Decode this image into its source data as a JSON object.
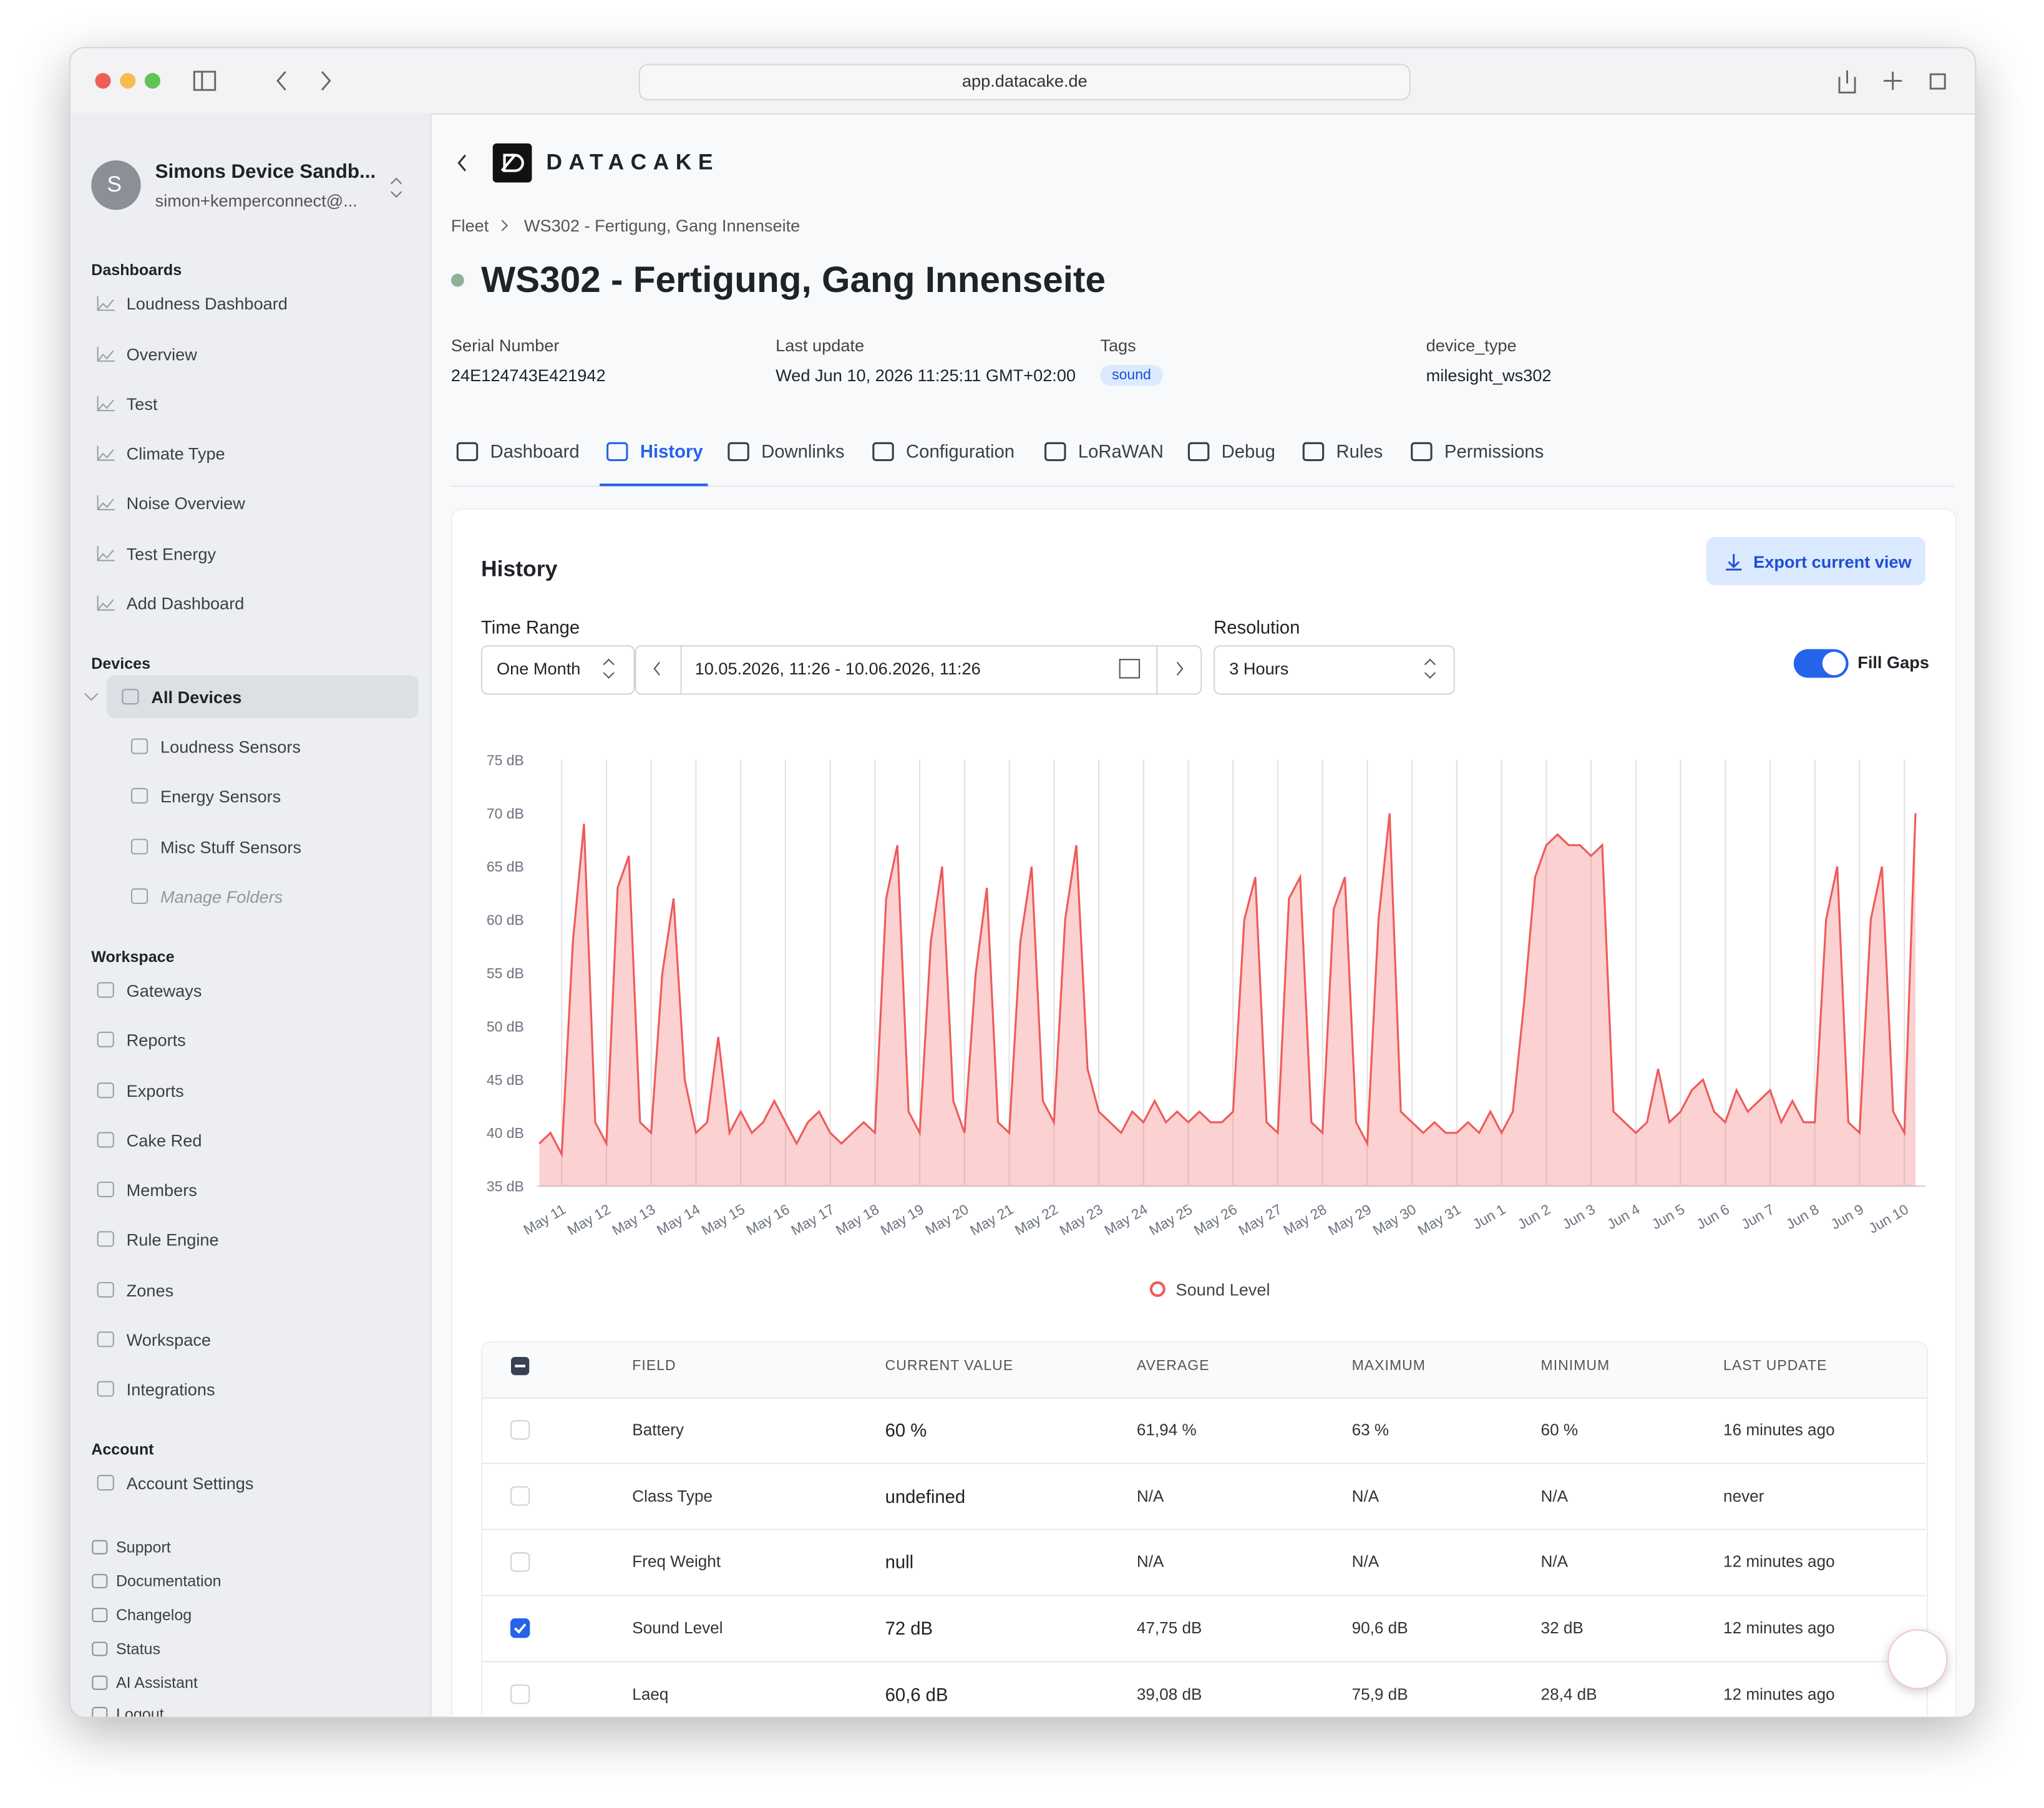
{
  "browser": {
    "url": "app.datacake.de"
  },
  "sidebar": {
    "avatar": "S",
    "account_name": "Simons Device Sandb...",
    "account_email": "simon+kemperconnect@...",
    "sections": [
      {
        "title": "Dashboards",
        "items": [
          "Loudness Dashboard",
          "Overview",
          "Test",
          "Climate Type",
          "Noise Overview",
          "Test Energy",
          "Add Dashboard"
        ]
      },
      {
        "title": "Devices",
        "items": [
          "All Devices",
          "Loudness Sensors",
          "Energy Sensors",
          "Misc Stuff Sensors",
          "Manage Folders"
        ]
      },
      {
        "title": "Workspace",
        "items": [
          "Gateways",
          "Reports",
          "Exports",
          "Cake Red",
          "Members",
          "Rule Engine",
          "Zones",
          "Workspace",
          "Integrations"
        ]
      },
      {
        "title": "Account",
        "items": [
          "Account Settings"
        ]
      }
    ],
    "footer_links": [
      "Support",
      "Documentation",
      "Changelog",
      "Status",
      "AI Assistant",
      "Logout"
    ]
  },
  "header": {
    "logo": "DATACAKE",
    "breadcrumb": [
      "Fleet",
      "WS302 - Fertigung, Gang Innenseite"
    ],
    "title": "WS302 - Fertigung, Gang Innenseite",
    "meta": [
      {
        "label": "Serial Number",
        "value": "24E124743E421942"
      },
      {
        "label": "Last update",
        "value": "Wed Jun 10, 2026 11:25:11 GMT+02:00"
      },
      {
        "label": "Tags",
        "value": "sound"
      },
      {
        "label": "device_type",
        "value": "milesight_ws302"
      }
    ],
    "tabs": [
      "Dashboard",
      "History",
      "Downlinks",
      "Configuration",
      "LoRaWAN",
      "Debug",
      "Rules",
      "Permissions"
    ],
    "active_tab": 1
  },
  "history": {
    "title": "History",
    "export_button": "Export current view",
    "time_range_label": "Time Range",
    "time_range": "One Month",
    "date_range": "10.05.2026, 11:26 - 10.06.2026, 11:26",
    "resolution_label": "Resolution",
    "resolution": "3 Hours",
    "fill_gaps_label": "Fill Gaps",
    "fill_gaps": true
  },
  "chart_data": {
    "type": "line",
    "area": true,
    "grid": "vertical",
    "x": [
      0.5,
      0.75,
      1,
      1.25,
      1.5,
      1.75,
      2,
      2.25,
      2.5,
      2.75,
      3,
      3.25,
      3.5,
      3.75,
      4,
      4.25,
      4.5,
      4.75,
      5,
      5.25,
      5.5,
      5.75,
      6,
      6.25,
      6.5,
      6.75,
      7,
      7.25,
      7.5,
      7.75,
      8,
      8.25,
      8.5,
      8.75,
      9,
      9.25,
      9.5,
      9.75,
      10,
      10.25,
      10.5,
      10.75,
      11,
      11.25,
      11.5,
      11.75,
      12,
      12.25,
      12.5,
      12.75,
      13,
      13.25,
      13.5,
      13.75,
      14,
      14.25,
      14.5,
      14.75,
      15,
      15.25,
      15.5,
      15.75,
      16,
      16.25,
      16.5,
      16.75,
      17,
      17.25,
      17.5,
      17.75,
      18,
      18.25,
      18.5,
      18.75,
      19,
      19.25,
      19.5,
      19.75,
      20,
      20.25,
      20.5,
      20.75,
      21,
      21.25,
      21.5,
      21.75,
      22,
      22.25,
      22.5,
      22.75,
      23,
      23.25,
      23.5,
      23.75,
      24,
      24.25,
      24.5,
      24.75,
      25,
      25.25,
      25.5,
      25.75,
      26,
      26.25,
      26.5,
      26.75,
      27,
      27.25,
      27.5,
      27.75,
      28,
      28.25,
      28.5,
      28.75,
      29,
      29.25,
      29.5,
      29.75,
      30,
      30.25,
      30.5,
      30.75,
      31,
      31.25
    ],
    "series": [
      {
        "name": "Sound Level",
        "color": "#ef5a5a",
        "values": [
          39,
          40,
          38,
          58,
          69,
          41,
          39,
          63,
          66,
          41,
          40,
          55,
          62,
          45,
          40,
          41,
          49,
          40,
          42,
          40,
          41,
          43,
          41,
          39,
          41,
          42,
          40,
          39,
          40,
          41,
          40,
          62,
          67,
          42,
          40,
          58,
          65,
          43,
          40,
          55,
          63,
          41,
          40,
          58,
          65,
          43,
          41,
          60,
          67,
          46,
          42,
          41,
          40,
          42,
          41,
          43,
          41,
          42,
          41,
          42,
          41,
          41,
          42,
          60,
          64,
          41,
          40,
          62,
          64,
          41,
          40,
          61,
          64,
          41,
          39,
          60,
          70,
          42,
          41,
          40,
          41,
          40,
          40,
          41,
          40,
          42,
          40,
          42,
          52,
          64,
          67,
          68,
          67,
          67,
          66,
          67,
          42,
          41,
          40,
          41,
          46,
          41,
          42,
          44,
          45,
          42,
          41,
          44,
          42,
          43,
          44,
          41,
          43,
          41,
          41,
          60,
          65,
          41,
          40,
          60,
          65,
          42,
          40,
          70
        ]
      }
    ],
    "xlim": [
      0.45,
      31.47
    ],
    "xticks": [
      {
        "value": 1,
        "label": "May 11"
      },
      {
        "value": 2,
        "label": "May 12"
      },
      {
        "value": 3,
        "label": "May 13"
      },
      {
        "value": 4,
        "label": "May 14"
      },
      {
        "value": 5,
        "label": "May 15"
      },
      {
        "value": 6,
        "label": "May 16"
      },
      {
        "value": 7,
        "label": "May 17"
      },
      {
        "value": 8,
        "label": "May 18"
      },
      {
        "value": 9,
        "label": "May 19"
      },
      {
        "value": 10,
        "label": "May 20"
      },
      {
        "value": 11,
        "label": "May 21"
      },
      {
        "value": 12,
        "label": "May 22"
      },
      {
        "value": 13,
        "label": "May 23"
      },
      {
        "value": 14,
        "label": "May 24"
      },
      {
        "value": 15,
        "label": "May 25"
      },
      {
        "value": 16,
        "label": "May 26"
      },
      {
        "value": 17,
        "label": "May 27"
      },
      {
        "value": 18,
        "label": "May 28"
      },
      {
        "value": 19,
        "label": "May 29"
      },
      {
        "value": 20,
        "label": "May 30"
      },
      {
        "value": 21,
        "label": "May 31"
      },
      {
        "value": 22,
        "label": "Jun 1"
      },
      {
        "value": 23,
        "label": "Jun 2"
      },
      {
        "value": 24,
        "label": "Jun 3"
      },
      {
        "value": 25,
        "label": "Jun 4"
      },
      {
        "value": 26,
        "label": "Jun 5"
      },
      {
        "value": 27,
        "label": "Jun 6"
      },
      {
        "value": 28,
        "label": "Jun 7"
      },
      {
        "value": 29,
        "label": "Jun 8"
      },
      {
        "value": 30,
        "label": "Jun 9"
      },
      {
        "value": 31,
        "label": "Jun 10"
      }
    ],
    "ylim": [
      35,
      75
    ],
    "yticks": [
      {
        "value": 35,
        "label": "35 dB"
      },
      {
        "value": 40,
        "label": "40 dB"
      },
      {
        "value": 45,
        "label": "45 dB"
      },
      {
        "value": 50,
        "label": "50 dB"
      },
      {
        "value": 55,
        "label": "55 dB"
      },
      {
        "value": 60,
        "label": "60 dB"
      },
      {
        "value": 65,
        "label": "65 dB"
      },
      {
        "value": 70,
        "label": "70 dB"
      },
      {
        "value": 75,
        "label": "75 dB"
      }
    ]
  },
  "table": {
    "columns": [
      "FIELD",
      "CURRENT VALUE",
      "AVERAGE",
      "MAXIMUM",
      "MINIMUM",
      "LAST UPDATE"
    ],
    "rows": [
      {
        "checked": false,
        "cells": [
          "Battery",
          "60 %",
          "61,94 %",
          "63 %",
          "60 %",
          "16 minutes ago"
        ]
      },
      {
        "checked": false,
        "cells": [
          "Class Type",
          "undefined",
          "N/A",
          "N/A",
          "N/A",
          "never"
        ]
      },
      {
        "checked": false,
        "cells": [
          "Freq Weight",
          "null",
          "N/A",
          "N/A",
          "N/A",
          "12 minutes ago"
        ]
      },
      {
        "checked": true,
        "cells": [
          "Sound Level",
          "72 dB",
          "47,75 dB",
          "90,6 dB",
          "32 dB",
          "12 minutes ago"
        ]
      },
      {
        "checked": false,
        "cells": [
          "Laeq",
          "60,6 dB",
          "39,08 dB",
          "75,9 dB",
          "28,4 dB",
          "12 minutes ago"
        ]
      }
    ]
  }
}
